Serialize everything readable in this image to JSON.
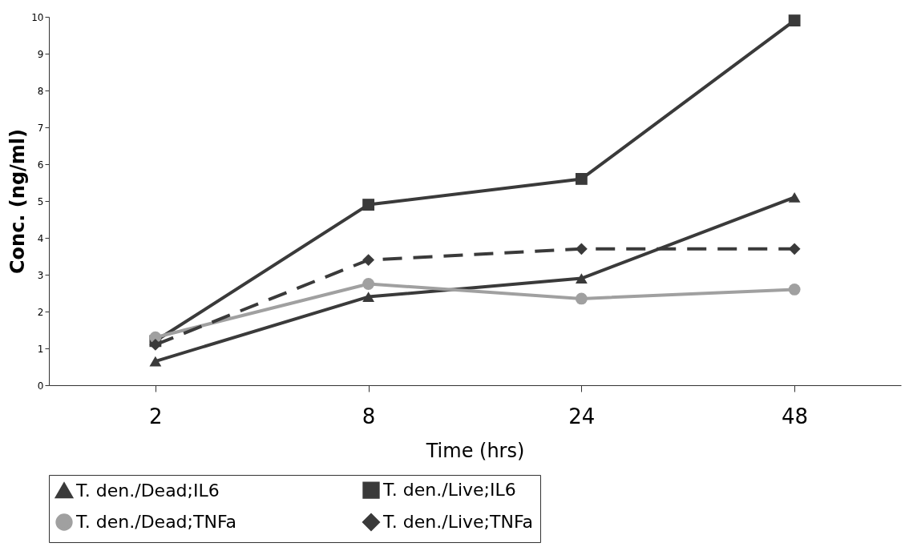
{
  "chart_data": {
    "type": "line",
    "xlabel": "Time (hrs)",
    "ylabel": "Conc. (ng/ml)",
    "categories": [
      "2",
      "8",
      "24",
      "48"
    ],
    "ylim": [
      0,
      10
    ],
    "yticks": [
      0,
      1,
      2,
      3,
      4,
      5,
      6,
      7,
      8,
      9,
      10
    ],
    "grid": false,
    "legend": "bottom",
    "series": [
      {
        "name": "T. den./Dead;IL6",
        "color": "#3a3a3a",
        "marker": "triangle",
        "line_style": "solid",
        "values": [
          0.65,
          2.4,
          2.9,
          5.1
        ]
      },
      {
        "name": "T. den./Live;IL6",
        "color": "#3a3a3a",
        "marker": "square",
        "line_style": "solid",
        "values": [
          1.2,
          4.9,
          5.6,
          9.9
        ]
      },
      {
        "name": "T. den./Dead;TNFa",
        "color": "#a0a0a0",
        "marker": "circle",
        "line_style": "solid",
        "values": [
          1.3,
          2.75,
          2.35,
          2.6
        ]
      },
      {
        "name": "T. den./Live;TNFa",
        "color": "#3a3a3a",
        "marker": "diamond",
        "line_style": "dashed",
        "values": [
          1.1,
          3.4,
          3.7,
          3.7
        ]
      }
    ]
  }
}
